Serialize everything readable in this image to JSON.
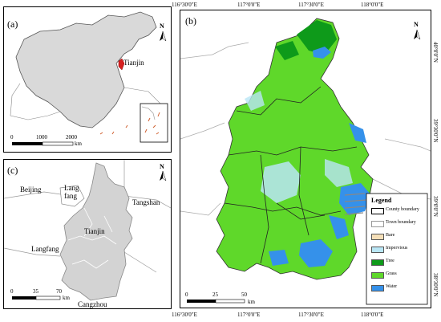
{
  "panels": {
    "a": {
      "label": "(a)",
      "city": "Tianjin",
      "scale": {
        "ticks": [
          "0",
          "1000",
          "2000"
        ],
        "unit": "km"
      }
    },
    "c": {
      "label": "(c)",
      "places": {
        "beijing": "Beijing",
        "langfang_top": "Lang",
        "langfang_top2": "fang",
        "tianjin": "Tianjin",
        "tangshan": "Tangshan",
        "langfang": "Langfang",
        "cangzhou": "Cangzhou"
      },
      "scale": {
        "ticks": [
          "0",
          "35",
          "70"
        ],
        "unit": "km"
      }
    },
    "b": {
      "label": "(b)",
      "top_ticks": [
        "116°30'0\"E",
        "117°0'0\"E",
        "117°30'0\"E",
        "118°0'0\"E"
      ],
      "bottom_ticks": [
        "116°30'0\"E",
        "117°0'0\"E",
        "117°30'0\"E",
        "118°0'0\"E"
      ],
      "right_ticks": [
        "40°0'0\"N",
        "39°30'0\"N",
        "39°0'0\"N",
        "38°30'0\"N"
      ],
      "scale": {
        "ticks": [
          "0",
          "25",
          "50"
        ],
        "unit": "km"
      },
      "legend": {
        "title": "Legend",
        "items": [
          {
            "label": "County boundary",
            "color": "#ffffff",
            "style": "box"
          },
          {
            "label": "Town boundary",
            "color": "#ffffff",
            "style": "thin"
          },
          {
            "label": "Bare",
            "color": "#f5dfb8",
            "style": "fill"
          },
          {
            "label": "Impervious",
            "color": "#b9e6f5",
            "style": "fill"
          },
          {
            "label": "Tree",
            "color": "#0e9a1a",
            "style": "fill"
          },
          {
            "label": "Grass",
            "color": "#5fd82a",
            "style": "fill"
          },
          {
            "label": "Water",
            "color": "#3591ea",
            "style": "fill"
          }
        ]
      }
    }
  },
  "north_label": "N"
}
